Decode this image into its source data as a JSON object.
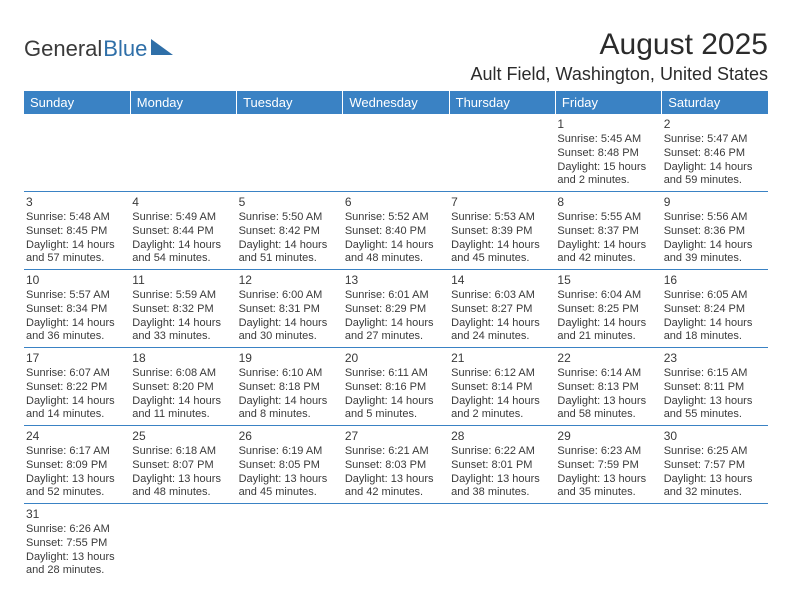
{
  "logo": {
    "part1": "General",
    "part2": "Blue"
  },
  "title": "August 2025",
  "location": "Ault Field, Washington, United States",
  "colors": {
    "header_bg": "#3a82c4",
    "header_text": "#ffffff",
    "cell_border": "#3a82c4",
    "body_text": "#3a3a3a",
    "logo_blue": "#2f6fa8",
    "background": "#ffffff"
  },
  "weekdays": [
    "Sunday",
    "Monday",
    "Tuesday",
    "Wednesday",
    "Thursday",
    "Friday",
    "Saturday"
  ],
  "weeks": [
    [
      {
        "blank": true
      },
      {
        "blank": true
      },
      {
        "blank": true
      },
      {
        "blank": true
      },
      {
        "blank": true
      },
      {
        "day": "1",
        "sunrise": "Sunrise: 5:45 AM",
        "sunset": "Sunset: 8:48 PM",
        "daylight1": "Daylight: 15 hours",
        "daylight2": "and 2 minutes."
      },
      {
        "day": "2",
        "sunrise": "Sunrise: 5:47 AM",
        "sunset": "Sunset: 8:46 PM",
        "daylight1": "Daylight: 14 hours",
        "daylight2": "and 59 minutes."
      }
    ],
    [
      {
        "day": "3",
        "sunrise": "Sunrise: 5:48 AM",
        "sunset": "Sunset: 8:45 PM",
        "daylight1": "Daylight: 14 hours",
        "daylight2": "and 57 minutes."
      },
      {
        "day": "4",
        "sunrise": "Sunrise: 5:49 AM",
        "sunset": "Sunset: 8:44 PM",
        "daylight1": "Daylight: 14 hours",
        "daylight2": "and 54 minutes."
      },
      {
        "day": "5",
        "sunrise": "Sunrise: 5:50 AM",
        "sunset": "Sunset: 8:42 PM",
        "daylight1": "Daylight: 14 hours",
        "daylight2": "and 51 minutes."
      },
      {
        "day": "6",
        "sunrise": "Sunrise: 5:52 AM",
        "sunset": "Sunset: 8:40 PM",
        "daylight1": "Daylight: 14 hours",
        "daylight2": "and 48 minutes."
      },
      {
        "day": "7",
        "sunrise": "Sunrise: 5:53 AM",
        "sunset": "Sunset: 8:39 PM",
        "daylight1": "Daylight: 14 hours",
        "daylight2": "and 45 minutes."
      },
      {
        "day": "8",
        "sunrise": "Sunrise: 5:55 AM",
        "sunset": "Sunset: 8:37 PM",
        "daylight1": "Daylight: 14 hours",
        "daylight2": "and 42 minutes."
      },
      {
        "day": "9",
        "sunrise": "Sunrise: 5:56 AM",
        "sunset": "Sunset: 8:36 PM",
        "daylight1": "Daylight: 14 hours",
        "daylight2": "and 39 minutes."
      }
    ],
    [
      {
        "day": "10",
        "sunrise": "Sunrise: 5:57 AM",
        "sunset": "Sunset: 8:34 PM",
        "daylight1": "Daylight: 14 hours",
        "daylight2": "and 36 minutes."
      },
      {
        "day": "11",
        "sunrise": "Sunrise: 5:59 AM",
        "sunset": "Sunset: 8:32 PM",
        "daylight1": "Daylight: 14 hours",
        "daylight2": "and 33 minutes."
      },
      {
        "day": "12",
        "sunrise": "Sunrise: 6:00 AM",
        "sunset": "Sunset: 8:31 PM",
        "daylight1": "Daylight: 14 hours",
        "daylight2": "and 30 minutes."
      },
      {
        "day": "13",
        "sunrise": "Sunrise: 6:01 AM",
        "sunset": "Sunset: 8:29 PM",
        "daylight1": "Daylight: 14 hours",
        "daylight2": "and 27 minutes."
      },
      {
        "day": "14",
        "sunrise": "Sunrise: 6:03 AM",
        "sunset": "Sunset: 8:27 PM",
        "daylight1": "Daylight: 14 hours",
        "daylight2": "and 24 minutes."
      },
      {
        "day": "15",
        "sunrise": "Sunrise: 6:04 AM",
        "sunset": "Sunset: 8:25 PM",
        "daylight1": "Daylight: 14 hours",
        "daylight2": "and 21 minutes."
      },
      {
        "day": "16",
        "sunrise": "Sunrise: 6:05 AM",
        "sunset": "Sunset: 8:24 PM",
        "daylight1": "Daylight: 14 hours",
        "daylight2": "and 18 minutes."
      }
    ],
    [
      {
        "day": "17",
        "sunrise": "Sunrise: 6:07 AM",
        "sunset": "Sunset: 8:22 PM",
        "daylight1": "Daylight: 14 hours",
        "daylight2": "and 14 minutes."
      },
      {
        "day": "18",
        "sunrise": "Sunrise: 6:08 AM",
        "sunset": "Sunset: 8:20 PM",
        "daylight1": "Daylight: 14 hours",
        "daylight2": "and 11 minutes."
      },
      {
        "day": "19",
        "sunrise": "Sunrise: 6:10 AM",
        "sunset": "Sunset: 8:18 PM",
        "daylight1": "Daylight: 14 hours",
        "daylight2": "and 8 minutes."
      },
      {
        "day": "20",
        "sunrise": "Sunrise: 6:11 AM",
        "sunset": "Sunset: 8:16 PM",
        "daylight1": "Daylight: 14 hours",
        "daylight2": "and 5 minutes."
      },
      {
        "day": "21",
        "sunrise": "Sunrise: 6:12 AM",
        "sunset": "Sunset: 8:14 PM",
        "daylight1": "Daylight: 14 hours",
        "daylight2": "and 2 minutes."
      },
      {
        "day": "22",
        "sunrise": "Sunrise: 6:14 AM",
        "sunset": "Sunset: 8:13 PM",
        "daylight1": "Daylight: 13 hours",
        "daylight2": "and 58 minutes."
      },
      {
        "day": "23",
        "sunrise": "Sunrise: 6:15 AM",
        "sunset": "Sunset: 8:11 PM",
        "daylight1": "Daylight: 13 hours",
        "daylight2": "and 55 minutes."
      }
    ],
    [
      {
        "day": "24",
        "sunrise": "Sunrise: 6:17 AM",
        "sunset": "Sunset: 8:09 PM",
        "daylight1": "Daylight: 13 hours",
        "daylight2": "and 52 minutes."
      },
      {
        "day": "25",
        "sunrise": "Sunrise: 6:18 AM",
        "sunset": "Sunset: 8:07 PM",
        "daylight1": "Daylight: 13 hours",
        "daylight2": "and 48 minutes."
      },
      {
        "day": "26",
        "sunrise": "Sunrise: 6:19 AM",
        "sunset": "Sunset: 8:05 PM",
        "daylight1": "Daylight: 13 hours",
        "daylight2": "and 45 minutes."
      },
      {
        "day": "27",
        "sunrise": "Sunrise: 6:21 AM",
        "sunset": "Sunset: 8:03 PM",
        "daylight1": "Daylight: 13 hours",
        "daylight2": "and 42 minutes."
      },
      {
        "day": "28",
        "sunrise": "Sunrise: 6:22 AM",
        "sunset": "Sunset: 8:01 PM",
        "daylight1": "Daylight: 13 hours",
        "daylight2": "and 38 minutes."
      },
      {
        "day": "29",
        "sunrise": "Sunrise: 6:23 AM",
        "sunset": "Sunset: 7:59 PM",
        "daylight1": "Daylight: 13 hours",
        "daylight2": "and 35 minutes."
      },
      {
        "day": "30",
        "sunrise": "Sunrise: 6:25 AM",
        "sunset": "Sunset: 7:57 PM",
        "daylight1": "Daylight: 13 hours",
        "daylight2": "and 32 minutes."
      }
    ],
    [
      {
        "day": "31",
        "sunrise": "Sunrise: 6:26 AM",
        "sunset": "Sunset: 7:55 PM",
        "daylight1": "Daylight: 13 hours",
        "daylight2": "and 28 minutes."
      },
      {
        "blank": true
      },
      {
        "blank": true
      },
      {
        "blank": true
      },
      {
        "blank": true
      },
      {
        "blank": true
      },
      {
        "blank": true
      }
    ]
  ]
}
